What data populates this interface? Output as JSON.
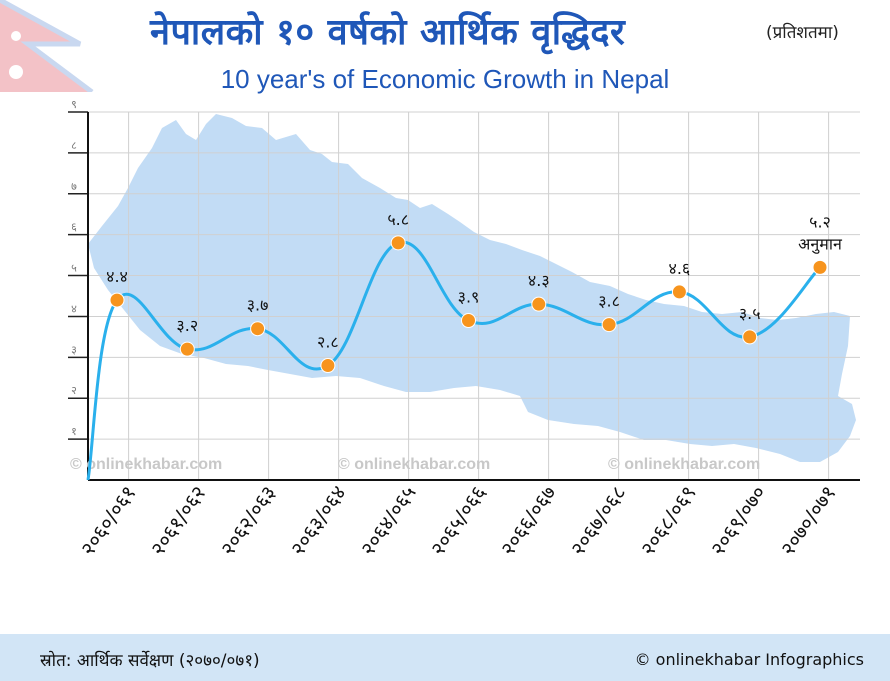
{
  "header": {
    "title_nepali": "नेपालको १० वर्षको आर्थिक वृद्धिदर",
    "unit_label": "(प्रतिशतमा)",
    "title_english": "10 year's of Economic Growth in Nepal"
  },
  "chart_data": {
    "type": "line",
    "categories": [
      "२०६०/०६१",
      "२०६१/०६२",
      "२०६२/०६३",
      "२०६३/०६४",
      "२०६४/०६५",
      "२०६५/०६६",
      "२०६६/०६७",
      "२०६७/०६८",
      "२०६८/०६९",
      "२०६९/०७०",
      "२०७०/०७१"
    ],
    "values": [
      4.4,
      3.2,
      3.7,
      2.8,
      5.8,
      3.9,
      4.3,
      3.8,
      4.6,
      3.5,
      5.2
    ],
    "value_labels": [
      "४.४",
      "३.२",
      "३.७",
      "२.८",
      "५.८",
      "३.९",
      "४.३",
      "३.८",
      "४.६",
      "३.५",
      "५.२"
    ],
    "annotations": [
      {
        "category_index": 10,
        "text": "अनुमान"
      }
    ],
    "y_tick_labels": [
      "१",
      "२",
      "३",
      "४",
      "५",
      "६",
      "७",
      "८",
      "९"
    ],
    "y_tick_values": [
      1,
      2,
      3,
      4,
      5,
      6,
      7,
      8,
      9
    ],
    "ylim": [
      0,
      9
    ],
    "grid": true,
    "colors": {
      "line": "#2ab0ec",
      "marker": "#f7941d",
      "map": "#c2dcf5",
      "grid": "#d0d0d0"
    }
  },
  "watermarks": [
    "© onlinekhabar.com",
    "© onlinekhabar.com",
    "© onlinekhabar.com"
  ],
  "footer": {
    "source": "स्रोत: आर्थिक सर्वेक्षण (२०७०/०७१)",
    "credit": "© onlinekhabar Infographics"
  }
}
